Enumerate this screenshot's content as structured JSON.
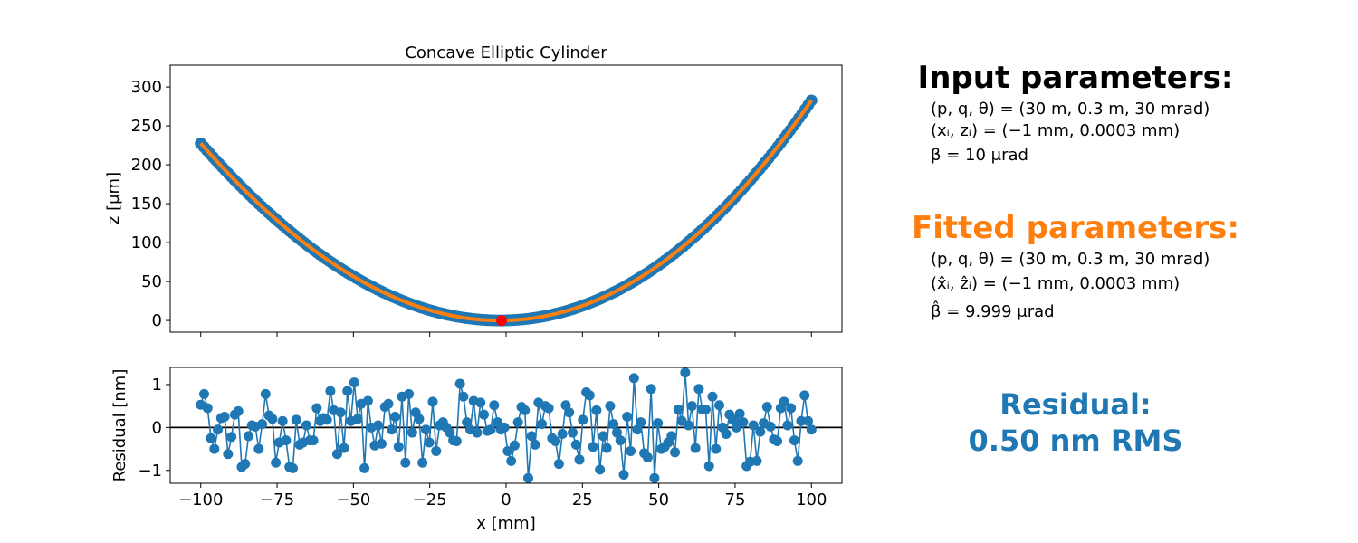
{
  "chart_data": [
    {
      "type": "scatter",
      "title": "Concave Elliptic Cylinder",
      "xlabel": "",
      "ylabel": "z [µm]",
      "xlim": [
        -110,
        110
      ],
      "ylim": [
        -15,
        328
      ],
      "xticks": [
        -100,
        -75,
        -50,
        -25,
        0,
        25,
        50,
        75,
        100
      ],
      "yticks": [
        0,
        50,
        100,
        150,
        200,
        250,
        300
      ],
      "grid": false,
      "series": [
        {
          "name": "",
          "kind": "points",
          "color": "#1f77b4",
          "x_range": [
            -100,
            100
          ],
          "n_points": 201,
          "model": {
            "vertex_x": -2,
            "a": 0.0254,
            "b": 1.74e-05
          }
        },
        {
          "name": "",
          "kind": "line",
          "color": "#ff7f0e",
          "x_range": [
            -100,
            100
          ],
          "model": {
            "vertex_x": -2,
            "a": 0.0254,
            "b": 1.74e-05
          }
        },
        {
          "name": "",
          "kind": "marker",
          "color": "#ff0000",
          "x": [
            -1.5
          ],
          "y": [
            0
          ]
        }
      ]
    },
    {
      "type": "line",
      "title": "",
      "xlabel": "x [mm]",
      "ylabel": "Residual [nm]",
      "xlim": [
        -110,
        110
      ],
      "ylim": [
        -1.3,
        1.4
      ],
      "xticks": [
        -100,
        -75,
        -50,
        -25,
        0,
        25,
        50,
        75,
        100
      ],
      "yticks": [
        -1,
        0,
        1
      ],
      "grid": false,
      "reference_line": {
        "y": 0,
        "color": "#000000"
      },
      "series": [
        {
          "name": "",
          "color": "#1f77b4",
          "x_range": [
            -100,
            100
          ],
          "y": [
            0.53,
            0.78,
            0.45,
            -0.25,
            -0.5,
            -0.05,
            0.22,
            0.25,
            -0.62,
            -0.22,
            0.3,
            0.38,
            -0.92,
            -0.85,
            -0.2,
            0.05,
            0.02,
            -0.5,
            0.08,
            0.78,
            0.28,
            0.2,
            -0.82,
            -0.35,
            0.15,
            -0.3,
            -0.92,
            -0.95,
            0.18,
            -0.4,
            -0.35,
            0.05,
            -0.3,
            -0.3,
            0.45,
            0.15,
            0.22,
            0.18,
            0.85,
            0.4,
            -0.62,
            0.35,
            -0.48,
            0.85,
            0.15,
            1.05,
            0.2,
            0.55,
            -0.95,
            0.62,
            0.0,
            -0.42,
            0.05,
            -0.38,
            0.48,
            0.55,
            -0.05,
            0.25,
            -0.45,
            0.72,
            -0.82,
            0.78,
            -0.12,
            0.35,
            0.2,
            -0.82,
            -0.05,
            -0.35,
            0.6,
            -0.55,
            0.05,
            0.12,
            0.0,
            -0.12,
            -0.3,
            -0.32,
            1.02,
            0.72,
            0.12,
            -0.05,
            0.62,
            -0.12,
            0.58,
            0.3,
            -0.08,
            -0.05,
            0.52,
            0.12,
            -0.05,
            0.0,
            -0.55,
            -0.78,
            -0.42,
            0.12,
            0.48,
            0.4,
            -1.18,
            -0.2,
            -0.4,
            0.58,
            0.08,
            0.5,
            0.45,
            -0.25,
            -0.32,
            -0.85,
            -0.15,
            0.52,
            0.35,
            -0.12,
            -0.4,
            -0.75,
            0.18,
            0.82,
            0.75,
            -0.45,
            0.4,
            -0.98,
            -0.2,
            -0.48,
            0.5,
            0.08,
            -0.12,
            -0.3,
            -1.1,
            0.25,
            -0.55,
            1.15,
            -0.05,
            0.12,
            -0.6,
            -0.7,
            0.9,
            -1.18,
            0.1,
            -0.5,
            -0.45,
            -0.35,
            -0.2,
            -0.58,
            0.42,
            0.15,
            1.28,
            0.05,
            0.5,
            -0.48,
            0.9,
            0.42,
            0.42,
            -0.9,
            0.72,
            -0.5,
            0.52,
            0.0,
            -0.15,
            0.3,
            0.18,
            0.0,
            0.32,
            0.12,
            -0.9,
            -0.8,
            0.05,
            -0.78,
            -0.1,
            0.1,
            0.48,
            0.02,
            -0.28,
            -0.32,
            0.45,
            0.6,
            0.05,
            0.45,
            -0.3,
            -0.78,
            0.15,
            0.75,
            0.15,
            -0.05
          ]
        }
      ]
    }
  ],
  "panels": {
    "input": {
      "title": "Input parameters:",
      "line1": "(p, q, θ) = (30 m, 0.3 m, 30 mrad)",
      "line2": "(xᵢ, zᵢ) = (−1 mm, 0.0003 mm)",
      "line3": "β = 10 μrad"
    },
    "fitted": {
      "title": "Fitted parameters:",
      "line1": "(p, q, θ) = (30 m, 0.3 m, 30 mrad)",
      "line2": "(x̂ᵢ, ẑᵢ) = (−1 mm, 0.0003 mm)",
      "line3": "β̂ = 9.999 μrad"
    },
    "residual": {
      "line1": "Residual:",
      "line2": "0.50 nm RMS"
    },
    "colors": {
      "input": "#000000",
      "fitted": "#ff7f0e",
      "residual": "#1f77b4"
    }
  }
}
